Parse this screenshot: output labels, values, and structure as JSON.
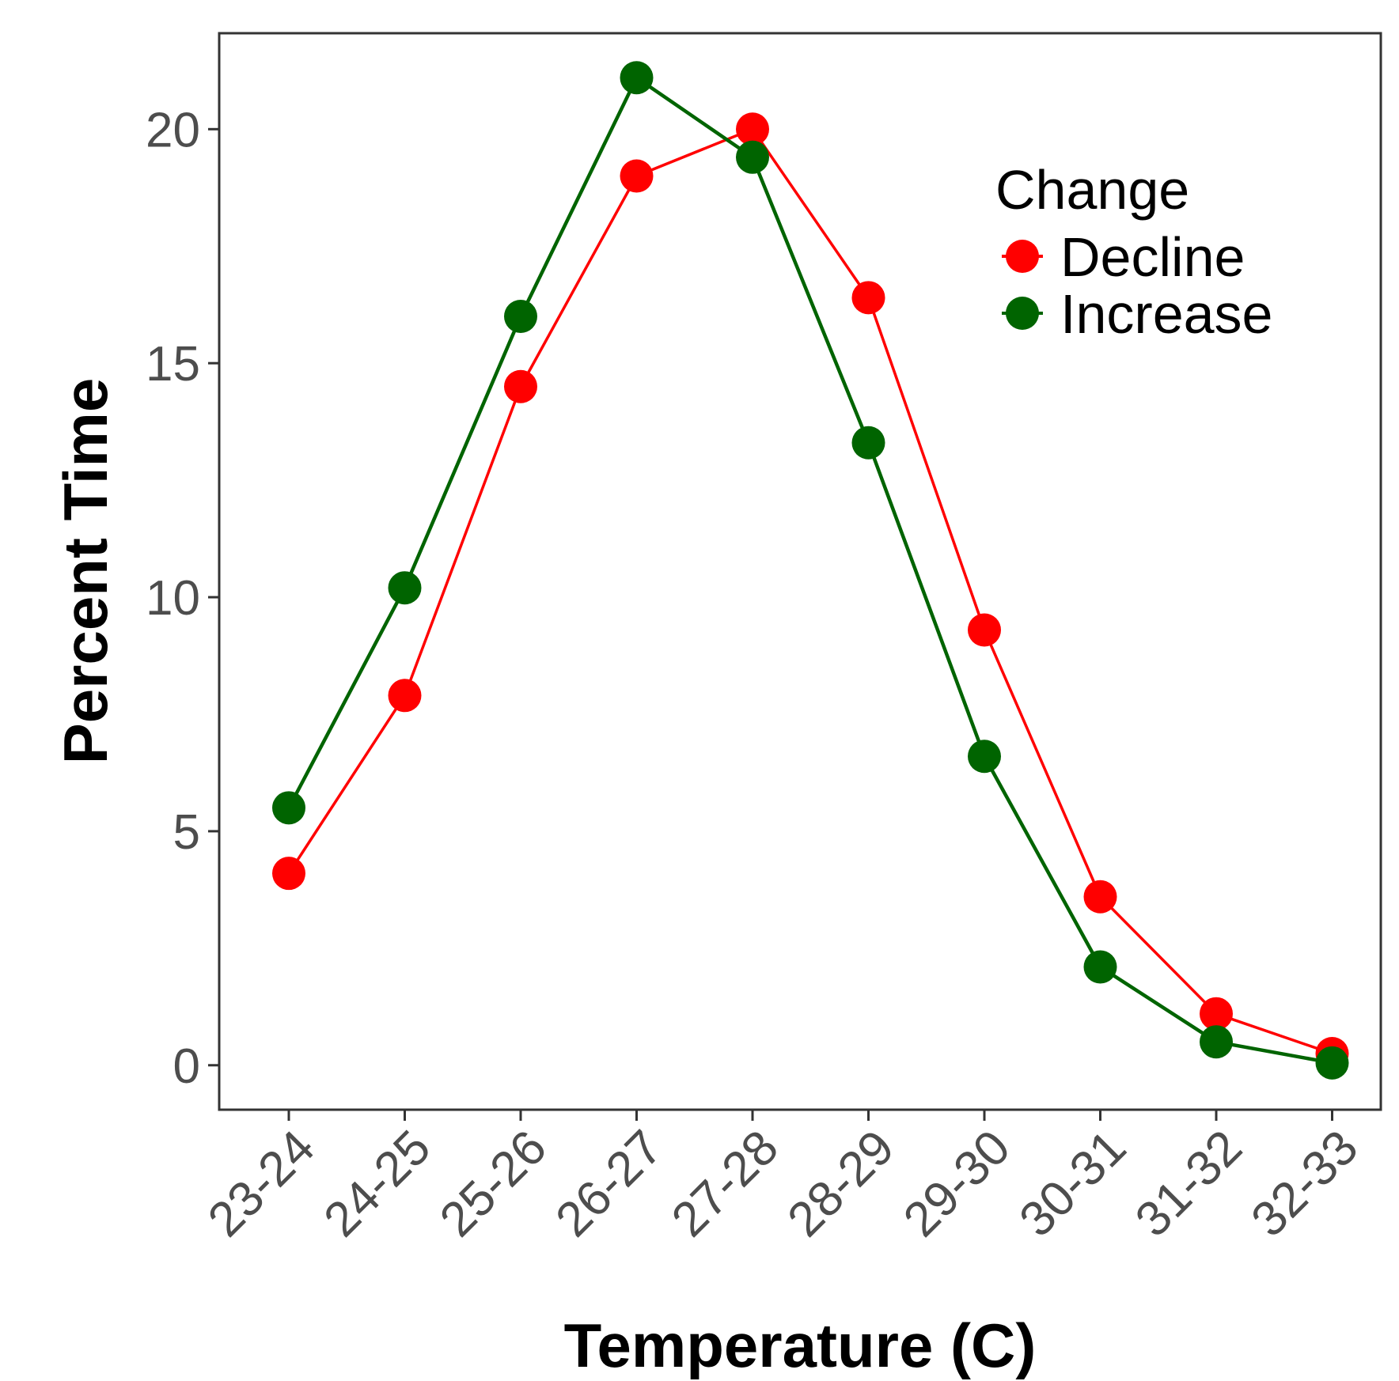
{
  "chart_data": {
    "type": "line",
    "title": "",
    "xlabel": "Temperature (C)",
    "ylabel": "Percent Time",
    "categories": [
      "23-24",
      "24-25",
      "25-26",
      "26-27",
      "27-28",
      "28-29",
      "29-30",
      "30-31",
      "31-32",
      "32-33"
    ],
    "ylim": [
      -0.95,
      22.05
    ],
    "yticks": [
      0,
      5,
      10,
      15,
      20
    ],
    "ytick_labels": [
      "0",
      "5",
      "10",
      "15",
      "20"
    ],
    "grid": false,
    "legend": {
      "title": "Change",
      "position": "top-right"
    },
    "series": [
      {
        "name": "Decline",
        "color": "#ff0000",
        "values": [
          4.1,
          7.9,
          14.5,
          19.0,
          20.0,
          16.4,
          9.3,
          3.6,
          1.1,
          0.25
        ]
      },
      {
        "name": "Increase",
        "color": "#006400",
        "values": [
          5.5,
          10.2,
          16.0,
          21.1,
          19.4,
          13.3,
          6.6,
          2.1,
          0.5,
          0.05
        ]
      }
    ]
  }
}
